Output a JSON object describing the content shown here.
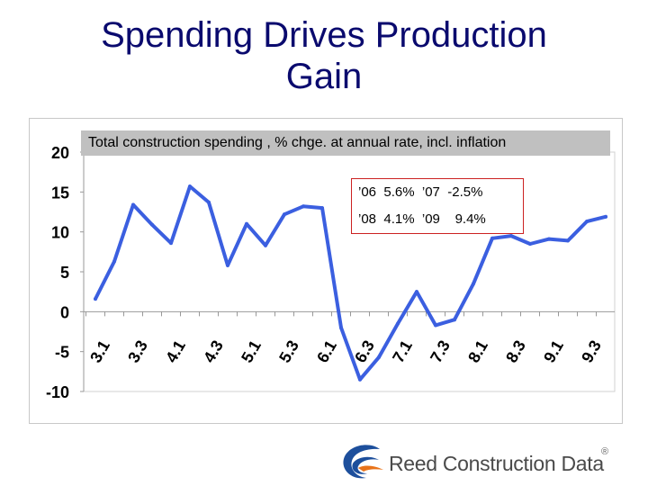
{
  "slide": {
    "title_line1": "Spending Drives Production",
    "title_line2": "Gain"
  },
  "subtitle": "Total construction spending , % chge. at annual rate, incl. inflation",
  "annotation": {
    "line1": "’06  5.6%  ’07  -2.5%",
    "line2": "’08  4.1%  ’09    9.4%"
  },
  "logo": {
    "text": "Reed Construction Data",
    "registered": "®"
  },
  "colors": {
    "title": "#0a0a6e",
    "line": "#3b5fe0",
    "annotation_border": "#cc2222",
    "subtitle_bg": "#c0c0c0",
    "logo_blue": "#1d4f9c",
    "logo_orange": "#e8731a"
  },
  "chart_data": {
    "type": "line",
    "title": "Total construction spending , % chge. at annual rate, incl. inflation",
    "xlabel": "",
    "ylabel": "",
    "ylim": [
      -10,
      20
    ],
    "yticks": [
      20,
      15,
      10,
      5,
      0,
      -5,
      -10
    ],
    "ytick_labels": [
      "20",
      "15",
      "10",
      "5",
      "0",
      "-5",
      "-10"
    ],
    "xtick_labels": [
      "3.1",
      "3.3",
      "4.1",
      "4.3",
      "5.1",
      "5.3",
      "6.1",
      "6.3",
      "7.1",
      "7.3",
      "8.1",
      "8.3",
      "9.1",
      "9.3"
    ],
    "series": [
      {
        "name": "Total construction spending",
        "values": [
          1.6,
          6.3,
          13.4,
          10.9,
          8.6,
          15.7,
          13.7,
          5.8,
          11.0,
          8.3,
          12.2,
          13.2,
          13.0,
          -2.0,
          -8.5,
          -5.7,
          -1.5,
          2.5,
          -1.7,
          -1.0,
          3.5,
          9.2,
          9.5,
          8.5,
          9.1,
          8.9,
          11.3,
          11.9
        ]
      }
    ]
  }
}
